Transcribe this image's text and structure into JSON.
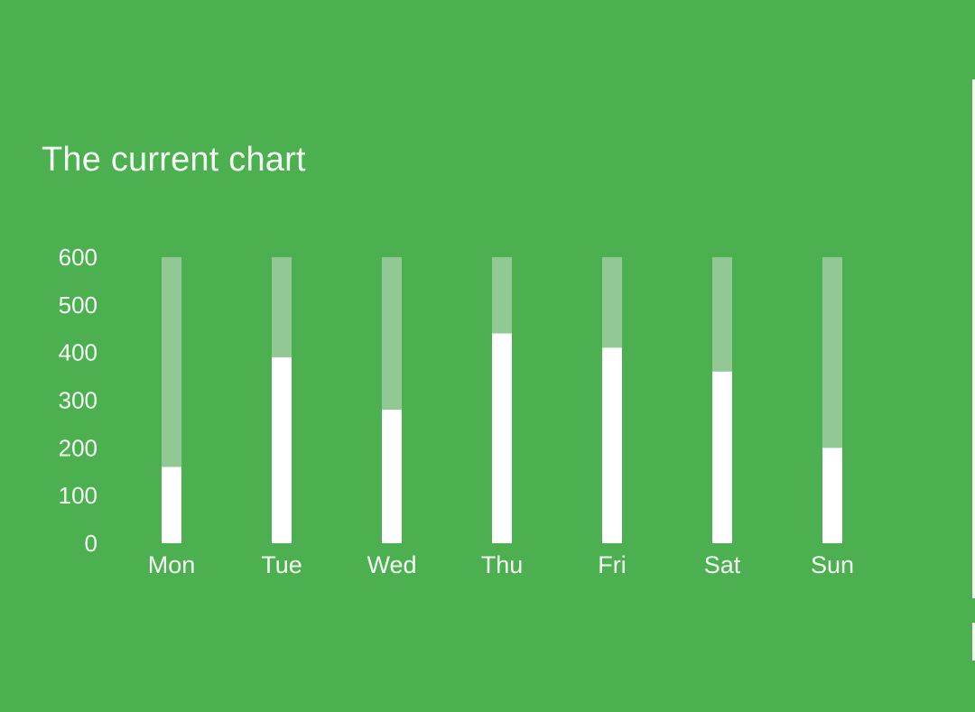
{
  "chart_data": {
    "type": "bar",
    "title": "The current chart",
    "categories": [
      "Mon",
      "Tue",
      "Wed",
      "Thu",
      "Fri",
      "Sat",
      "Sun"
    ],
    "values": [
      160,
      390,
      280,
      440,
      410,
      360,
      200
    ],
    "max_values": [
      600,
      600,
      600,
      600,
      600,
      600,
      600
    ],
    "yticks": [
      "0",
      "100",
      "200",
      "300",
      "400",
      "500",
      "600"
    ],
    "ylim": [
      0,
      600
    ],
    "xlabel": "",
    "ylabel": "",
    "grid": false,
    "legend": "none",
    "colors": {
      "background": "#4caf50",
      "bar": "#ffffff",
      "track": "#91c893",
      "text": "#f6fff6"
    }
  }
}
